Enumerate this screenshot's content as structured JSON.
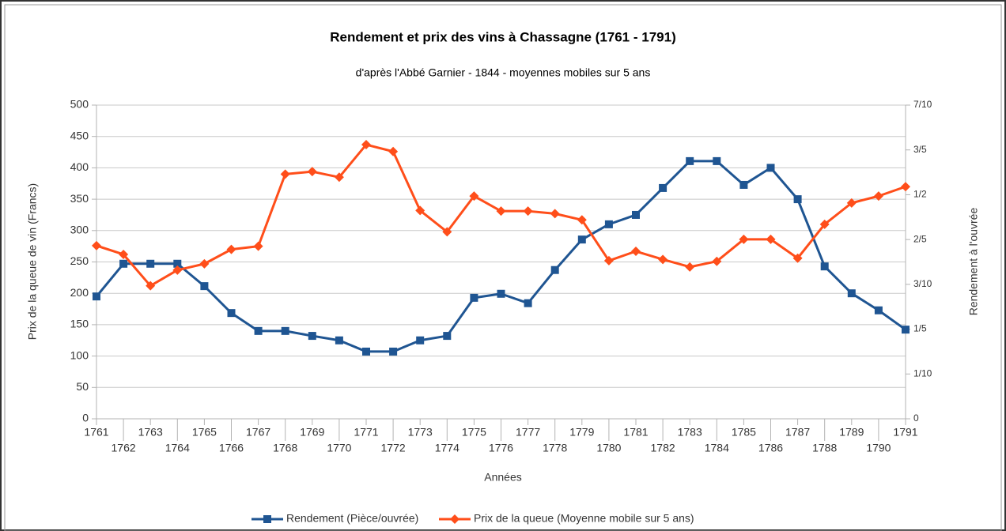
{
  "chart_data": {
    "type": "line",
    "title": "Rendement et prix des vins à Chassagne (1761 - 1791)",
    "subtitle": "d'après l'Abbé Garnier - 1844 - moyennes mobiles sur 5 ans",
    "xlabel": "Années",
    "ylabel": "Prix de la queue de vin (Francs)",
    "y2label": "Rendement à l'ouvrée",
    "x": [
      1761,
      1762,
      1763,
      1764,
      1765,
      1766,
      1767,
      1768,
      1769,
      1770,
      1771,
      1772,
      1773,
      1774,
      1775,
      1776,
      1777,
      1778,
      1779,
      1780,
      1781,
      1782,
      1783,
      1784,
      1785,
      1786,
      1787,
      1788,
      1789,
      1790,
      1791
    ],
    "xlim": [
      1761,
      1791
    ],
    "xticks": [
      1761,
      1762,
      1763,
      1764,
      1765,
      1766,
      1767,
      1768,
      1769,
      1770,
      1771,
      1772,
      1773,
      1774,
      1775,
      1776,
      1777,
      1778,
      1779,
      1780,
      1781,
      1782,
      1783,
      1784,
      1785,
      1786,
      1787,
      1788,
      1789,
      1790,
      1791
    ],
    "ylim": [
      0,
      500
    ],
    "yticks": [
      0,
      50,
      100,
      150,
      200,
      250,
      300,
      350,
      400,
      450,
      500
    ],
    "y2lim": [
      0,
      0.7
    ],
    "y2ticks": [
      0,
      {
        "value": 0.1,
        "label": "1/10"
      },
      {
        "value": 0.2,
        "label": "1/5"
      },
      {
        "value": 0.3,
        "label": "3/10"
      },
      {
        "value": 0.4,
        "label": "2/5"
      },
      {
        "value": 0.5,
        "label": "1/2"
      },
      {
        "value": 0.6,
        "label": "3/5"
      },
      {
        "value": 0.7,
        "label": "7/10"
      }
    ],
    "grid": true,
    "legend": "bottom",
    "series": [
      {
        "name": "Rendement (Pièce/ouvrée)",
        "color": "#1f5592",
        "marker": "square",
        "axis": "y2",
        "values": [
          0.273,
          0.346,
          0.346,
          0.346,
          0.296,
          0.236,
          0.196,
          0.196,
          0.185,
          0.175,
          0.15,
          0.15,
          0.175,
          0.185,
          0.27,
          0.279,
          0.258,
          0.332,
          0.4,
          0.434,
          0.455,
          0.515,
          0.575,
          0.575,
          0.522,
          0.56,
          0.49,
          0.34,
          0.28,
          0.242,
          0.199
        ]
      },
      {
        "name": "Prix de la queue (Moyenne mobile sur 5 ans)",
        "color": "#ff4e1a",
        "marker": "diamond",
        "axis": "y",
        "values": [
          276,
          262,
          212,
          237,
          247,
          270,
          275,
          390,
          394,
          385,
          437,
          426,
          332,
          298,
          355,
          331,
          331,
          327,
          317,
          252,
          267,
          254,
          242,
          251,
          286,
          286,
          256,
          310,
          344,
          355,
          370
        ]
      }
    ]
  }
}
